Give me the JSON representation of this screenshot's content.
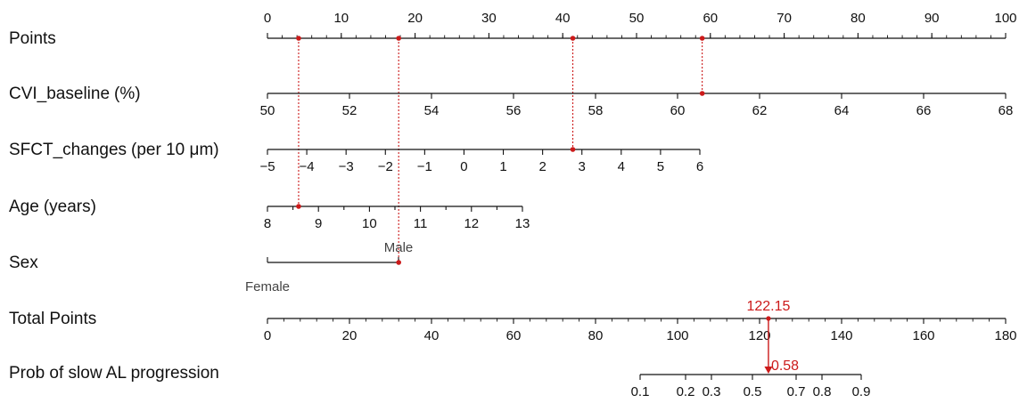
{
  "chart_data": {
    "type": "nomogram",
    "colors": {
      "axis": "#111111",
      "highlight": "#cc1a1a",
      "category_text": "#444444"
    },
    "scales": [
      {
        "id": "points",
        "label_main": "Points",
        "label_unit": "",
        "range": [
          0,
          100
        ],
        "ticks": [
          {
            "v": 0,
            "t": "0"
          },
          {
            "v": 10,
            "t": "10"
          },
          {
            "v": 20,
            "t": "20"
          },
          {
            "v": 30,
            "t": "30"
          },
          {
            "v": 40,
            "t": "40"
          },
          {
            "v": 50,
            "t": "50"
          },
          {
            "v": 60,
            "t": "60"
          },
          {
            "v": 70,
            "t": "70"
          },
          {
            "v": 80,
            "t": "80"
          },
          {
            "v": 90,
            "t": "90"
          },
          {
            "v": 100,
            "t": "100"
          }
        ],
        "minor_step": 2,
        "tick_labels_above": true,
        "highlight": null
      },
      {
        "id": "cvi",
        "label_main": "CVI_baseline",
        "label_unit": "(%)",
        "range": [
          50,
          68
        ],
        "ticks": [
          {
            "v": 50,
            "t": "50"
          },
          {
            "v": 52,
            "t": "52"
          },
          {
            "v": 54,
            "t": "54"
          },
          {
            "v": 56,
            "t": "56"
          },
          {
            "v": 58,
            "t": "58"
          },
          {
            "v": 60,
            "t": "60"
          },
          {
            "v": 62,
            "t": "62"
          },
          {
            "v": 64,
            "t": "64"
          },
          {
            "v": 66,
            "t": "66"
          },
          {
            "v": 68,
            "t": "68"
          }
        ],
        "tick_labels_above": false,
        "highlight": 60.6
      },
      {
        "id": "sfct",
        "label_main": "SFCT_changes",
        "label_unit": "(per 10 μm)",
        "range": [
          -5,
          6
        ],
        "ticks": [
          {
            "v": -5,
            "t": "−5"
          },
          {
            "v": -4,
            "t": "−4"
          },
          {
            "v": -3,
            "t": "−3"
          },
          {
            "v": -2,
            "t": "−2"
          },
          {
            "v": -1,
            "t": "−1"
          },
          {
            "v": 0,
            "t": "0"
          },
          {
            "v": 1,
            "t": "1"
          },
          {
            "v": 2,
            "t": "2"
          },
          {
            "v": 3,
            "t": "3"
          },
          {
            "v": 4,
            "t": "4"
          },
          {
            "v": 5,
            "t": "5"
          },
          {
            "v": 6,
            "t": "6"
          }
        ],
        "tick_labels_above": false,
        "highlight": 2.8
      },
      {
        "id": "age",
        "label_main": "Age",
        "label_unit": "(years)",
        "range": [
          8,
          13
        ],
        "ticks": [
          {
            "v": 8,
            "t": "8"
          },
          {
            "v": 8.5,
            "t": ""
          },
          {
            "v": 9,
            "t": "9"
          },
          {
            "v": 9.5,
            "t": ""
          },
          {
            "v": 10,
            "t": "10"
          },
          {
            "v": 10.5,
            "t": ""
          },
          {
            "v": 11,
            "t": "11"
          },
          {
            "v": 11.5,
            "t": ""
          },
          {
            "v": 12,
            "t": "12"
          },
          {
            "v": 12.5,
            "t": ""
          },
          {
            "v": 13,
            "t": "13"
          }
        ],
        "tick_labels_above": false,
        "highlight": 8.6
      },
      {
        "id": "sex",
        "label_main": "Sex",
        "label_unit": "",
        "range": [
          0,
          1
        ],
        "categorical": true,
        "categories": [
          {
            "v": 0,
            "t": "Female",
            "pos": "below"
          },
          {
            "v": 1,
            "t": "Male",
            "pos": "above"
          }
        ],
        "highlight": 1
      },
      {
        "id": "total",
        "label_main": "Total Points",
        "label_unit": "",
        "range": [
          0,
          180
        ],
        "ticks": [
          {
            "v": 0,
            "t": "0"
          },
          {
            "v": 20,
            "t": "20"
          },
          {
            "v": 40,
            "t": "40"
          },
          {
            "v": 60,
            "t": "60"
          },
          {
            "v": 80,
            "t": "80"
          },
          {
            "v": 100,
            "t": "100"
          },
          {
            "v": 120,
            "t": "120"
          },
          {
            "v": 140,
            "t": "140"
          },
          {
            "v": 160,
            "t": "160"
          },
          {
            "v": 180,
            "t": "180"
          }
        ],
        "minor_step": 4,
        "tick_labels_above": false,
        "highlight": 122.15,
        "highlight_label": "122.15"
      },
      {
        "id": "prob",
        "label_main": "Prob of slow AL progression",
        "label_unit": "",
        "range": [
          0.1,
          0.9
        ],
        "ticks": [
          {
            "v": 0.1,
            "t": "0.1"
          },
          {
            "v": 0.2,
            "t": "0.2"
          },
          {
            "v": 0.3,
            "t": "0.3"
          },
          {
            "v": 0.5,
            "t": "0.5"
          },
          {
            "v": 0.7,
            "t": "0.7"
          },
          {
            "v": 0.8,
            "t": "0.8"
          },
          {
            "v": 0.9,
            "t": "0.9"
          }
        ],
        "tick_labels_above": false,
        "highlight": 0.58,
        "highlight_label": "0.58"
      }
    ],
    "predictor_points": [
      {
        "scale": "age",
        "value": 8.6,
        "points": 4.3
      },
      {
        "scale": "sex",
        "value": 1,
        "points": 17.8
      },
      {
        "scale": "sfct",
        "value": 2.8,
        "points": 41.2
      },
      {
        "scale": "cvi",
        "value": 60.6,
        "points": 58.9
      }
    ]
  }
}
